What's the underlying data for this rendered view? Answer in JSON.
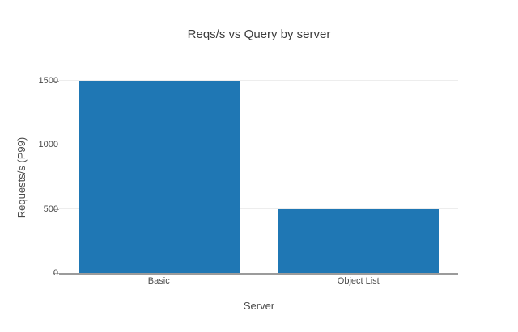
{
  "chart_data": {
    "type": "bar",
    "title": "Reqs/s vs Query by server",
    "xlabel": "Server",
    "ylabel": "Requests/s (P99)",
    "categories": [
      "Basic",
      "Object List"
    ],
    "values": [
      1500,
      500
    ],
    "yticks": [
      0,
      500,
      1000,
      1500
    ],
    "ylim": [
      0,
      1594
    ],
    "grid": "horizontal-only",
    "legend": "none",
    "background": "#ffffff"
  },
  "colors": {
    "background": "#ffffff",
    "bar": "#1f77b4",
    "title_text": "#3d3d3d",
    "axis_text": "#4a4a4a",
    "gridline": "#ededed",
    "axis_line": "#9b9b9b",
    "tick_mark": "#b3b3b3"
  }
}
